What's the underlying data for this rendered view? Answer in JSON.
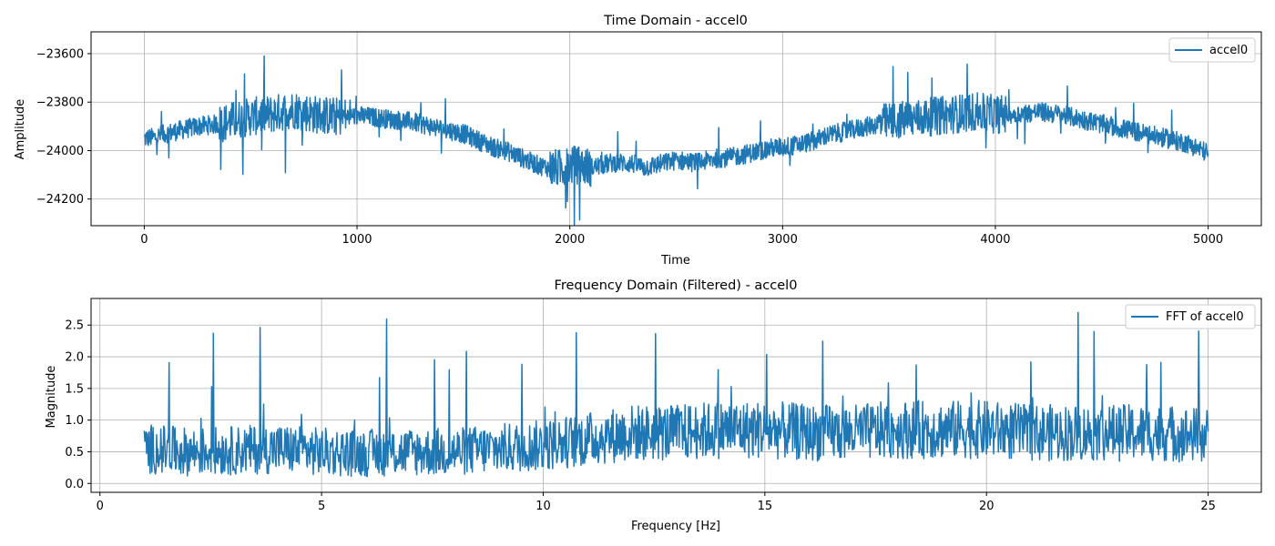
{
  "figure": {
    "background": "#ffffff",
    "line_color": "#1f77b4",
    "grid_color": "#b0b0b0"
  },
  "chart_data": [
    {
      "type": "line",
      "title": "Time Domain - accel0",
      "xlabel": "Time",
      "ylabel": "Amplitude",
      "xlim": [
        -250,
        5250
      ],
      "ylim": [
        -24310,
        -23510
      ],
      "xticks": [
        0,
        1000,
        2000,
        3000,
        4000,
        5000
      ],
      "xtick_labels": [
        "0",
        "1000",
        "2000",
        "3000",
        "4000",
        "5000"
      ],
      "yticks": [
        -23600,
        -23800,
        -24000,
        -24200
      ],
      "ytick_labels": [
        "−23600",
        "−23800",
        "−24000",
        "−24200"
      ],
      "grid": true,
      "legend_position": "top-right",
      "series": [
        {
          "name": "accel0",
          "color": "#1f77b4",
          "x": [
            0,
            50,
            100,
            150,
            200,
            250,
            300,
            350,
            400,
            450,
            500,
            550,
            600,
            650,
            700,
            750,
            800,
            850,
            900,
            950,
            1000,
            1050,
            1100,
            1150,
            1200,
            1250,
            1300,
            1350,
            1400,
            1450,
            1500,
            1550,
            1600,
            1650,
            1700,
            1750,
            1800,
            1850,
            1900,
            1950,
            2000,
            2050,
            2100,
            2150,
            2200,
            2250,
            2300,
            2350,
            2400,
            2450,
            2500,
            2550,
            2600,
            2650,
            2700,
            2750,
            2800,
            2850,
            2900,
            2950,
            3000,
            3050,
            3100,
            3150,
            3200,
            3250,
            3300,
            3350,
            3400,
            3450,
            3500,
            3550,
            3600,
            3650,
            3700,
            3750,
            3800,
            3850,
            3900,
            3950,
            4000,
            4050,
            4100,
            4150,
            4200,
            4250,
            4300,
            4350,
            4400,
            4450,
            4500,
            4550,
            4600,
            4650,
            4700,
            4750,
            4800,
            4850,
            4900,
            4950,
            5000
          ],
          "y": [
            -23950,
            -23945,
            -23930,
            -23920,
            -23910,
            -23900,
            -23895,
            -23890,
            -23880,
            -23870,
            -23860,
            -23855,
            -23850,
            -23840,
            -23830,
            -23840,
            -23850,
            -23855,
            -23860,
            -23860,
            -23855,
            -23860,
            -23865,
            -23870,
            -23875,
            -23880,
            -23890,
            -23900,
            -23910,
            -23920,
            -23930,
            -23950,
            -23970,
            -23990,
            -24000,
            -24020,
            -24040,
            -24060,
            -24070,
            -24075,
            -24060,
            -24060,
            -24070,
            -24060,
            -24050,
            -24050,
            -24055,
            -24070,
            -24060,
            -24050,
            -24040,
            -24045,
            -24050,
            -24040,
            -24030,
            -24030,
            -24020,
            -24010,
            -24000,
            -23990,
            -23985,
            -23980,
            -23970,
            -23960,
            -23940,
            -23930,
            -23920,
            -23910,
            -23900,
            -23890,
            -23880,
            -23875,
            -23870,
            -23865,
            -23860,
            -23855,
            -23850,
            -23845,
            -23840,
            -23845,
            -23850,
            -23850,
            -23850,
            -23845,
            -23840,
            -23845,
            -23850,
            -23860,
            -23870,
            -23880,
            -23890,
            -23900,
            -23910,
            -23920,
            -23930,
            -23940,
            -23950,
            -23960,
            -23970,
            -23990,
            -24010
          ],
          "x_end": 5000,
          "noise": {
            "center": 40,
            "edge": 80
          }
        }
      ]
    },
    {
      "type": "line",
      "title": "Frequency Domain (Filtered) - accel0",
      "xlabel": "Frequency [Hz]",
      "ylabel": "Magnitude",
      "xlim": [
        -0.2,
        26.2
      ],
      "ylim": [
        -0.14,
        2.92
      ],
      "xticks": [
        0,
        5,
        10,
        15,
        20,
        25
      ],
      "xtick_labels": [
        "0",
        "5",
        "10",
        "15",
        "20",
        "25"
      ],
      "yticks": [
        0.0,
        0.5,
        1.0,
        1.5,
        2.0,
        2.5
      ],
      "ytick_labels": [
        "0.0",
        "0.5",
        "1.0",
        "1.5",
        "2.0",
        "2.5"
      ],
      "grid": true,
      "legend_position": "top-right",
      "series": [
        {
          "name": "FFT of accel0",
          "color": "#1f77b4",
          "x": [
            1,
            2,
            3,
            4,
            5,
            6,
            7,
            8,
            9,
            10,
            11,
            12,
            13,
            14,
            15,
            16,
            17,
            18,
            19,
            20,
            21,
            22,
            23,
            24,
            25
          ],
          "y": [
            0.55,
            0.5,
            0.52,
            0.55,
            0.5,
            0.48,
            0.5,
            0.5,
            0.55,
            0.6,
            0.7,
            0.8,
            0.8,
            0.85,
            0.85,
            0.8,
            0.8,
            0.85,
            0.85,
            0.85,
            0.8,
            0.8,
            0.8,
            0.8,
            0.75
          ],
          "x_end": 25,
          "noise": {
            "spread": 0.45,
            "peak_max": 2.75
          }
        }
      ]
    }
  ]
}
